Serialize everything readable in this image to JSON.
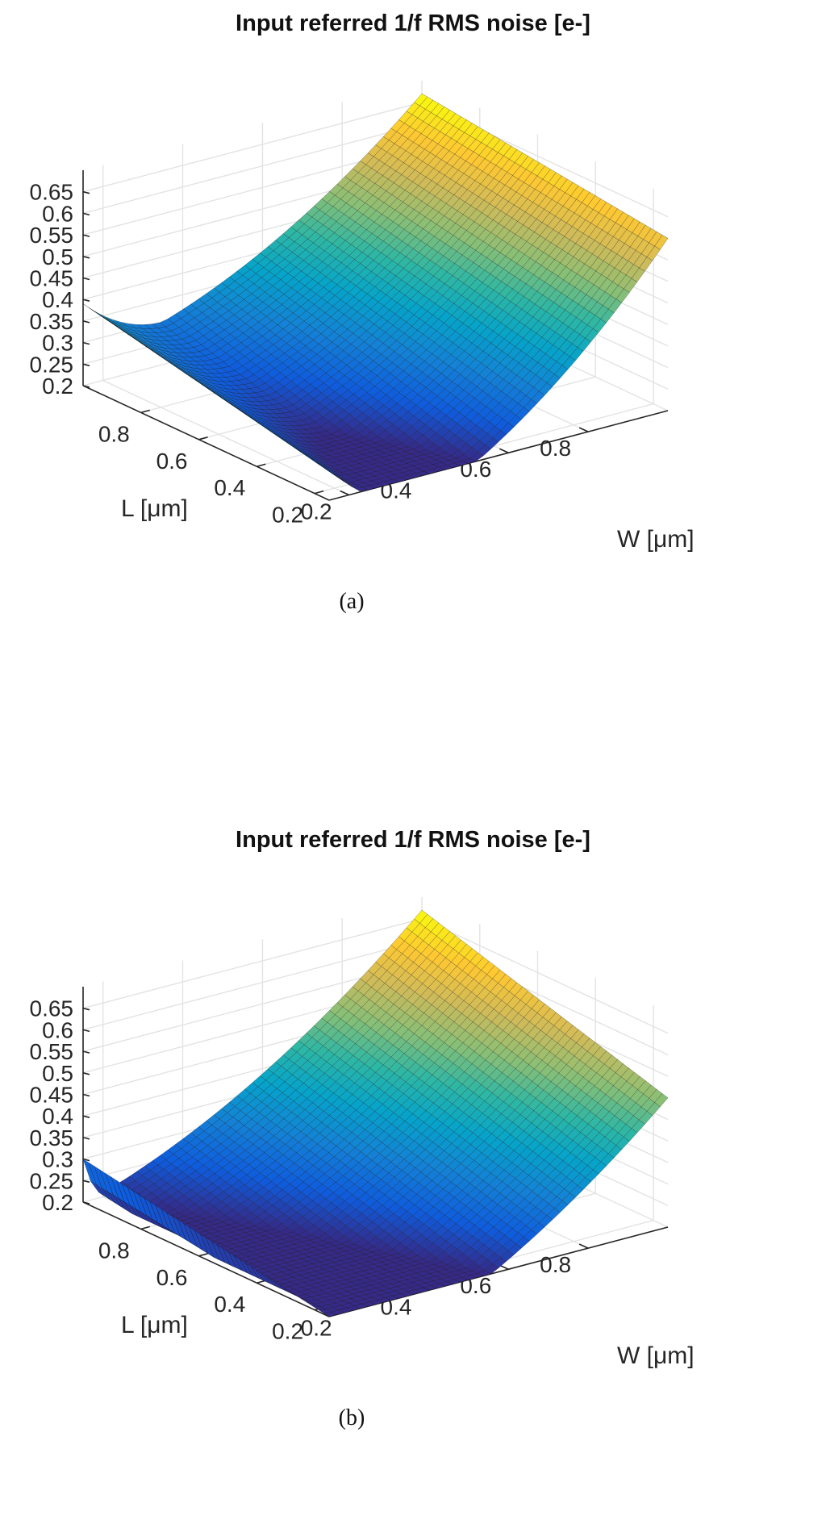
{
  "colors": {
    "surface_low": "#3e26a8",
    "surface_mid": "#2db7a5",
    "surface_high": "#f9fb15",
    "grid": "#e3e3e3",
    "axis": "#262626"
  },
  "chart_data": [
    {
      "type": "surface",
      "panel_label": "(a)",
      "title": "Input referred 1/f RMS noise [e-]",
      "xlabel": "W [μm]",
      "ylabel": "L [μm]",
      "zlabel": "",
      "xlim": [
        0.15,
        1.0
      ],
      "ylim": [
        0.15,
        1.0
      ],
      "zlim": [
        0.2,
        0.7
      ],
      "xticks": [
        "0.2",
        "0.4",
        "0.6",
        "0.8"
      ],
      "yticks": [
        "0.8",
        "0.6",
        "0.4",
        "0.2"
      ],
      "zticks": [
        "0.2",
        "0.25",
        "0.3",
        "0.35",
        "0.4",
        "0.45",
        "0.5",
        "0.55",
        "0.6",
        "0.65"
      ],
      "grid": true,
      "colormap": "parula",
      "corners": {
        "W_min_L_max": 0.39,
        "W_min_L_min": 0.27,
        "W_max_L_max": 0.67,
        "W_max_L_min": 0.6
      },
      "surface_min_at_W": 0.4
    },
    {
      "type": "surface",
      "panel_label": "(b)",
      "title": "Input referred 1/f RMS noise [e-]",
      "xlabel": "W [μm]",
      "ylabel": "L [μm]",
      "zlabel": "",
      "xlim": [
        0.15,
        1.0
      ],
      "ylim": [
        0.15,
        1.0
      ],
      "zlim": [
        0.2,
        0.7
      ],
      "xticks": [
        "0.2",
        "0.4",
        "0.6",
        "0.8"
      ],
      "yticks": [
        "0.8",
        "0.6",
        "0.4",
        "0.2"
      ],
      "zticks": [
        "0.2",
        "0.25",
        "0.3",
        "0.35",
        "0.4",
        "0.45",
        "0.5",
        "0.55",
        "0.6",
        "0.65"
      ],
      "grid": true,
      "colormap": "parula",
      "corners": {
        "W_min_L_max": 0.3,
        "W_min_L_min": 0.2,
        "W_max_L_max": 0.67,
        "W_max_L_min": 0.5
      },
      "surface_min_at_W": 0.25
    }
  ]
}
